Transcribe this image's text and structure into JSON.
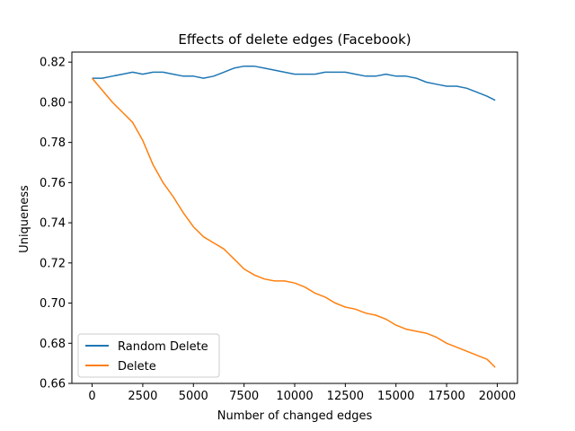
{
  "chart_data": {
    "type": "line",
    "title": "Effects of delete edges (Facebook)",
    "xlabel": "Number of changed edges",
    "ylabel": "Uniqueness",
    "xlim": [
      -1000,
      21000
    ],
    "ylim": [
      0.66,
      0.825
    ],
    "xticks": [
      0,
      2500,
      5000,
      7500,
      10000,
      12500,
      15000,
      17500,
      20000
    ],
    "xtick_labels": [
      "0",
      "2500",
      "5000",
      "7500",
      "10000",
      "12500",
      "15000",
      "17500",
      "20000"
    ],
    "yticks": [
      0.66,
      0.68,
      0.7,
      0.72,
      0.74,
      0.76,
      0.78,
      0.8,
      0.82
    ],
    "ytick_labels": [
      "0.66",
      "0.68",
      "0.70",
      "0.72",
      "0.74",
      "0.76",
      "0.78",
      "0.80",
      "0.82"
    ],
    "grid": false,
    "legend_position": "lower-left",
    "x": [
      0,
      500,
      1000,
      1500,
      2000,
      2500,
      3000,
      3500,
      4000,
      4500,
      5000,
      5500,
      6000,
      6500,
      7000,
      7500,
      8000,
      8500,
      9000,
      9500,
      10000,
      10500,
      11000,
      11500,
      12000,
      12500,
      13000,
      13500,
      14000,
      14500,
      15000,
      15500,
      16000,
      16500,
      17000,
      17500,
      18000,
      18500,
      19000,
      19500,
      19900
    ],
    "series": [
      {
        "name": "Random Delete",
        "color": "#1f77b4",
        "values": [
          0.812,
          0.812,
          0.813,
          0.814,
          0.815,
          0.814,
          0.815,
          0.815,
          0.814,
          0.813,
          0.813,
          0.812,
          0.813,
          0.815,
          0.817,
          0.818,
          0.818,
          0.817,
          0.816,
          0.815,
          0.814,
          0.814,
          0.814,
          0.815,
          0.815,
          0.815,
          0.814,
          0.813,
          0.813,
          0.814,
          0.813,
          0.813,
          0.812,
          0.81,
          0.809,
          0.808,
          0.808,
          0.807,
          0.805,
          0.803,
          0.801
        ]
      },
      {
        "name": "Delete",
        "color": "#ff7f0e",
        "values": [
          0.812,
          0.806,
          0.8,
          0.795,
          0.79,
          0.781,
          0.769,
          0.76,
          0.753,
          0.745,
          0.738,
          0.733,
          0.73,
          0.727,
          0.722,
          0.717,
          0.714,
          0.712,
          0.711,
          0.711,
          0.71,
          0.708,
          0.705,
          0.703,
          0.7,
          0.698,
          0.697,
          0.695,
          0.694,
          0.692,
          0.689,
          0.687,
          0.686,
          0.685,
          0.683,
          0.68,
          0.678,
          0.676,
          0.674,
          0.672,
          0.668
        ]
      }
    ]
  }
}
